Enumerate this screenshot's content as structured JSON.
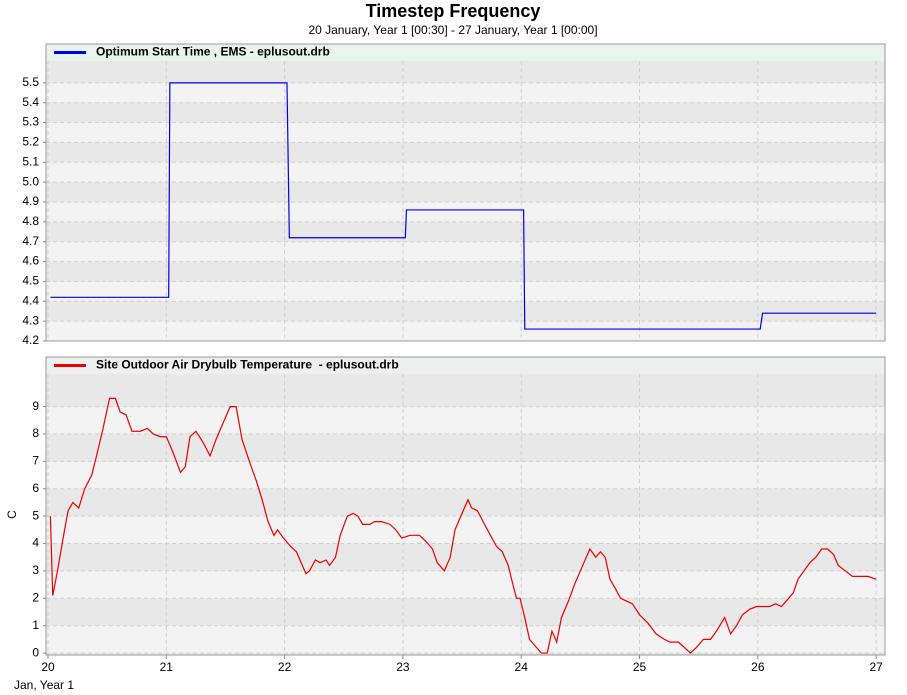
{
  "title": "Timestep Frequency",
  "subtitle": "20 January, Year 1 [00:30] - 27 January, Year 1 [00:00]",
  "chart_data": [
    {
      "type": "line",
      "legend_background": "#e8f5ee",
      "xlim": [
        19.983,
        27.075
      ],
      "xticks": [
        20,
        21,
        22,
        23,
        24,
        25,
        26,
        27
      ],
      "ylim": [
        4.2,
        5.61
      ],
      "yticks": [
        4.2,
        4.3,
        4.4,
        4.5,
        4.6,
        4.7,
        4.8,
        4.9,
        {
          "value": 5,
          "label": "5.0"
        },
        5.1,
        5.2,
        5.3,
        5.4,
        5.5
      ],
      "grid": true,
      "series": [
        {
          "name": "Optimum Start Time , EMS - eplusout.drb",
          "color": "#0000ee",
          "x": [
            20.02,
            21.02,
            21.03,
            22.02,
            22.04,
            23.02,
            23.03,
            24.02,
            24.03,
            26.02,
            26.04,
            27.0
          ],
          "values": [
            4.42,
            4.42,
            5.5,
            5.5,
            4.72,
            4.72,
            4.86,
            4.86,
            4.26,
            4.26,
            4.34,
            4.34
          ]
        }
      ]
    },
    {
      "type": "line",
      "legend_background": "#eeefef",
      "ylabel": "C",
      "xlabel": "Jan, Year 1",
      "xlim": [
        19.983,
        27.075
      ],
      "xticks": [
        20,
        21,
        22,
        23,
        24,
        25,
        26,
        27
      ],
      "ylim": [
        -0.07,
        10.19
      ],
      "yticks": [
        0,
        1,
        2,
        3,
        4,
        5,
        6,
        7,
        8,
        9
      ],
      "grid": true,
      "series": [
        {
          "name": "Site Outdoor Air Drybulb Temperature  - eplusout.drb",
          "color": "#ee0000",
          "x": [
            20.02,
            20.04,
            20.08,
            20.14,
            20.17,
            20.21,
            20.26,
            20.31,
            20.37,
            20.41,
            20.46,
            20.52,
            20.57,
            20.61,
            20.66,
            20.71,
            20.78,
            20.84,
            20.89,
            20.95,
            21.0,
            21.05,
            21.12,
            21.16,
            21.2,
            21.25,
            21.31,
            21.37,
            21.42,
            21.47,
            21.54,
            21.59,
            21.64,
            21.71,
            21.76,
            21.81,
            21.86,
            21.91,
            21.94,
            21.99,
            22.05,
            22.1,
            22.14,
            22.18,
            22.21,
            22.26,
            22.3,
            22.35,
            22.38,
            22.43,
            22.47,
            22.53,
            22.58,
            22.62,
            22.66,
            22.72,
            22.76,
            22.82,
            22.89,
            22.94,
            22.99,
            23.06,
            23.14,
            23.19,
            23.25,
            23.29,
            23.35,
            23.4,
            23.44,
            23.5,
            23.55,
            23.58,
            23.63,
            23.69,
            23.74,
            23.79,
            23.84,
            23.89,
            23.93,
            23.96,
            23.99,
            24.03,
            24.07,
            24.13,
            24.17,
            24.22,
            24.26,
            24.3,
            24.34,
            24.4,
            24.45,
            24.51,
            24.58,
            24.63,
            24.67,
            24.71,
            24.75,
            24.79,
            24.84,
            24.89,
            24.94,
            25.0,
            25.07,
            25.14,
            25.21,
            25.26,
            25.33,
            25.38,
            25.43,
            25.48,
            25.54,
            25.6,
            25.65,
            25.72,
            25.77,
            25.82,
            25.87,
            25.93,
            25.99,
            26.05,
            26.1,
            26.15,
            26.2,
            26.26,
            26.3,
            26.34,
            26.39,
            26.44,
            26.49,
            26.54,
            26.59,
            26.64,
            26.68,
            26.74,
            26.8,
            26.86,
            26.93,
            27.0
          ],
          "values": [
            5.0,
            2.1,
            3.0,
            4.5,
            5.2,
            5.5,
            5.3,
            6.0,
            6.5,
            7.2,
            8.1,
            9.3,
            9.3,
            8.8,
            8.7,
            8.1,
            8.1,
            8.2,
            8.0,
            7.9,
            7.9,
            7.4,
            6.6,
            6.8,
            7.9,
            8.1,
            7.7,
            7.2,
            7.8,
            8.3,
            9.0,
            9.0,
            7.8,
            6.9,
            6.3,
            5.6,
            4.8,
            4.3,
            4.5,
            4.2,
            3.9,
            3.7,
            3.3,
            2.9,
            3.0,
            3.4,
            3.3,
            3.4,
            3.2,
            3.5,
            4.3,
            5.0,
            5.1,
            5.0,
            4.7,
            4.7,
            4.8,
            4.8,
            4.7,
            4.5,
            4.2,
            4.3,
            4.3,
            4.1,
            3.8,
            3.3,
            3.0,
            3.5,
            4.5,
            5.1,
            5.6,
            5.3,
            5.2,
            4.7,
            4.3,
            3.9,
            3.7,
            3.2,
            2.5,
            2.0,
            2.0,
            1.3,
            0.5,
            0.2,
            0,
            0,
            0.8,
            0.4,
            1.3,
            1.9,
            2.5,
            3.1,
            3.8,
            3.5,
            3.7,
            3.5,
            2.7,
            2.4,
            2.0,
            1.9,
            1.8,
            1.4,
            1.1,
            0.7,
            0.5,
            0.4,
            0.4,
            0.2,
            0,
            0.2,
            0.5,
            0.5,
            0.8,
            1.3,
            0.7,
            1.0,
            1.4,
            1.6,
            1.7,
            1.7,
            1.7,
            1.8,
            1.7,
            2.0,
            2.2,
            2.7,
            3.0,
            3.3,
            3.5,
            3.8,
            3.8,
            3.6,
            3.2,
            3.0,
            2.8,
            2.8,
            2.8,
            2.7
          ]
        }
      ]
    }
  ]
}
